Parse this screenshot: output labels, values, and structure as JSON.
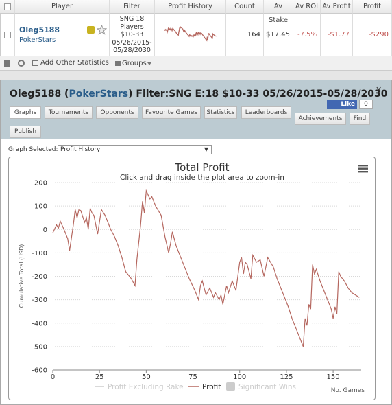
{
  "table": {
    "headers": [
      "Player",
      "Filter",
      "Profit History",
      "Count",
      "Av Stake",
      "Av ROI",
      "Av Profit",
      "Profit"
    ],
    "row": {
      "player": "Oleg5188",
      "site": "PokerStars",
      "filter_lines": [
        "SNG 18",
        "Players",
        "$10-33",
        "05/26/2015-",
        "05/28/2030"
      ],
      "count": "164",
      "av_stake": "$17.45",
      "av_roi": "-7.5%",
      "av_profit": "-$1.77",
      "profit": "-$290"
    }
  },
  "toolbar": {
    "add": "Add Other Statistics",
    "groups": "Groups"
  },
  "panel": {
    "title": [
      "Oleg5188 (",
      "PokerStars",
      ") Filter:SNG E:18 $10-33 05/26/2015-05/28/2030"
    ],
    "like": "Like",
    "like_count": "0",
    "tabs": [
      "Graphs",
      "Tournaments",
      "Opponents",
      "Favourite Games",
      "Statistics",
      "Leaderboards",
      "Achievements",
      "Find",
      "Publish"
    ],
    "graph_selected_label": "Graph Selected:",
    "graph_selected": "Profit History"
  },
  "chart_data": {
    "type": "line",
    "title": "Total Profit",
    "subtitle": "Click and drag inside the plot area to zoom-in",
    "y_label": "Cumulative Total (USD)",
    "x_label": "No. Games",
    "x": [
      0,
      2,
      3,
      4,
      6,
      8,
      9,
      11,
      12,
      13,
      14,
      15,
      17,
      18,
      19,
      20,
      21,
      22,
      24,
      26,
      28,
      31,
      33,
      35,
      37,
      39,
      42,
      44,
      45,
      47,
      48,
      49,
      50,
      52,
      53,
      55,
      58,
      60,
      62,
      63,
      64,
      66,
      68,
      70,
      73,
      76,
      78,
      79,
      80,
      82,
      84,
      86,
      87,
      89,
      90,
      91,
      93,
      94,
      96,
      98,
      100,
      101,
      102,
      103,
      104,
      106,
      107,
      109,
      111,
      113,
      115,
      118,
      120,
      123,
      126,
      128,
      130,
      132,
      134,
      135,
      136,
      137,
      138,
      139,
      140,
      141,
      143,
      145,
      147,
      149,
      150,
      151,
      152,
      153,
      154,
      156,
      158,
      160,
      164
    ],
    "series": [
      {
        "name": "Profit",
        "color": "#b5675f",
        "values": [
          -15,
          20,
          5,
          35,
          0,
          -40,
          -90,
          20,
          85,
          50,
          85,
          80,
          30,
          50,
          0,
          90,
          70,
          60,
          -20,
          85,
          60,
          0,
          -30,
          -70,
          -120,
          -180,
          -210,
          -240,
          -130,
          20,
          120,
          70,
          165,
          130,
          140,
          100,
          60,
          -30,
          -100,
          -60,
          -10,
          -70,
          -110,
          -150,
          -210,
          -260,
          -300,
          -240,
          -220,
          -280,
          -250,
          -290,
          -270,
          -300,
          -280,
          -320,
          -240,
          -270,
          -220,
          -260,
          -140,
          -120,
          -190,
          -140,
          -150,
          -210,
          -110,
          -140,
          -130,
          -200,
          -120,
          -160,
          -210,
          -270,
          -330,
          -380,
          -420,
          -460,
          -500,
          -380,
          -410,
          -320,
          -340,
          -150,
          -190,
          -170,
          -220,
          -260,
          -300,
          -340,
          -380,
          -330,
          -360,
          -180,
          -200,
          -220,
          -250,
          -270,
          -290
        ]
      }
    ],
    "hidden_legend": [
      "Profit Excluding Rake",
      "Significant Wins"
    ],
    "xlim": [
      0,
      165
    ],
    "xticks": [
      0,
      25,
      50,
      75,
      100,
      125,
      150
    ],
    "ylim": [
      -600,
      200
    ],
    "yticks": [
      -600,
      -500,
      -400,
      -300,
      -200,
      -100,
      0,
      100,
      200
    ],
    "grid": true
  }
}
